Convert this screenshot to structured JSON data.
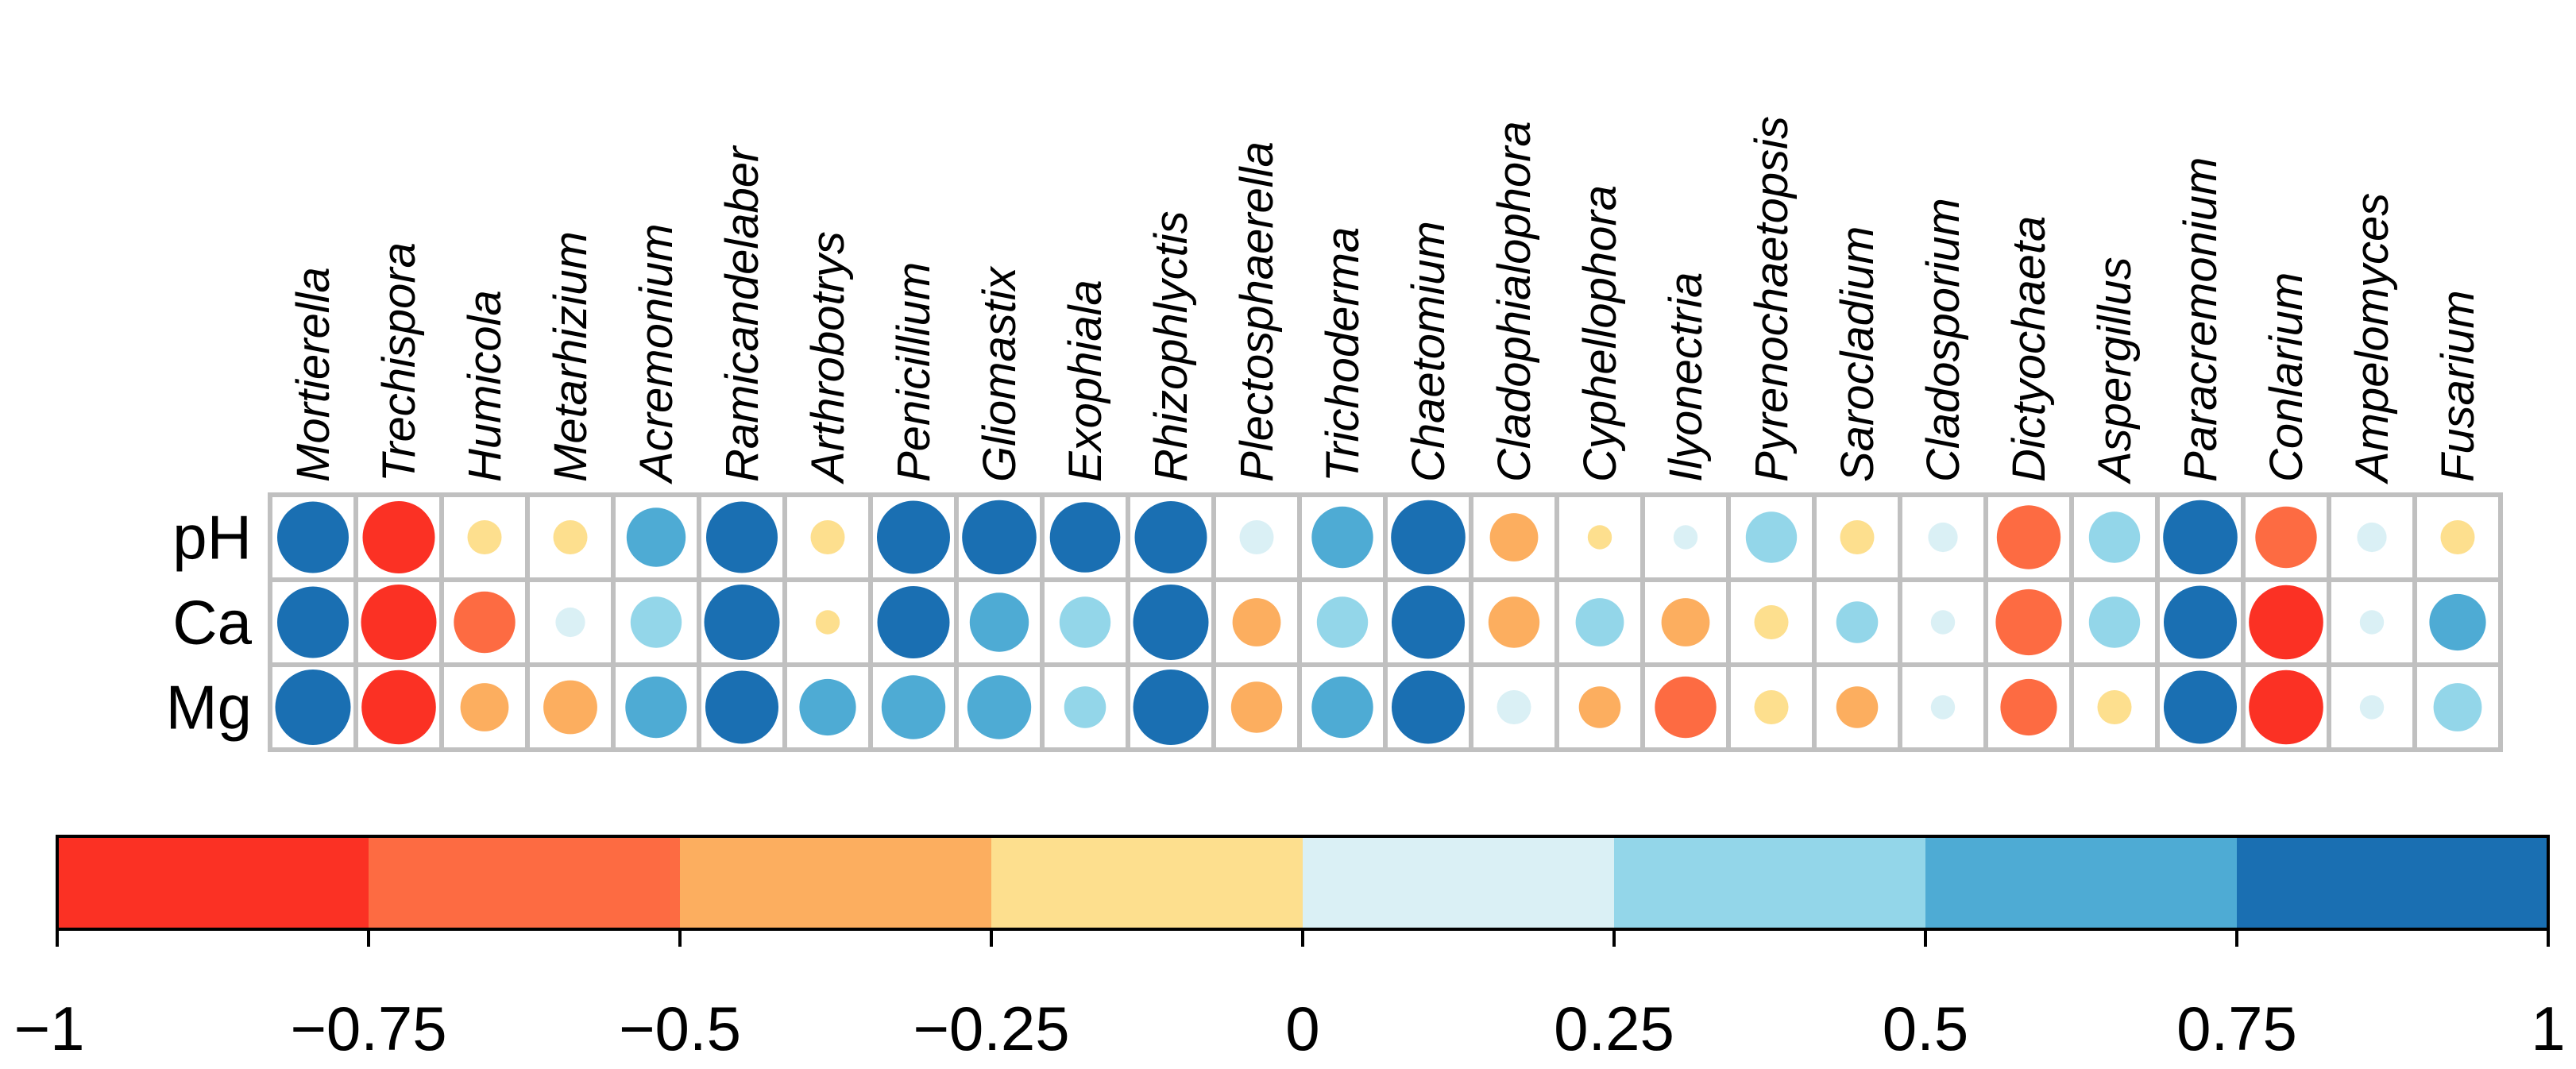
{
  "chart_data": {
    "type": "correlation-dotplot",
    "columns": [
      "Mortierella",
      "Trechispora",
      "Humicola",
      "Metarhizium",
      "Acremonium",
      "Ramicandelaber",
      "Arthrobotrys",
      "Penicillium",
      "Gliomastix",
      "Exophiala",
      "Rhizophlyctis",
      "Plectosphaerella",
      "Trichoderma",
      "Chaetomium",
      "Cladophialophora",
      "Cyphellophora",
      "Ilyonectria",
      "Pyrenochaetopsis",
      "Sarocladium",
      "Cladosporium",
      "Dictyochaeta",
      "Aspergillus",
      "Paracremonium",
      "Conlarium",
      "Ampelomyces",
      "Fusarium"
    ],
    "rows": [
      "pH",
      "Ca",
      "Mg"
    ],
    "values": [
      [
        0.88,
        -0.9,
        -0.2,
        -0.2,
        0.6,
        0.88,
        -0.2,
        0.92,
        0.95,
        0.85,
        0.9,
        0.2,
        0.65,
        0.95,
        -0.4,
        -0.1,
        0.1,
        0.45,
        -0.2,
        0.15,
        -0.7,
        0.45,
        0.95,
        -0.65,
        0.15,
        -0.2
      ],
      [
        0.88,
        -0.98,
        -0.65,
        0.15,
        0.45,
        0.98,
        -0.1,
        0.9,
        0.6,
        0.45,
        0.98,
        -0.4,
        0.45,
        0.92,
        -0.45,
        0.4,
        -0.4,
        -0.2,
        0.3,
        0.1,
        -0.75,
        0.45,
        0.92,
        -0.95,
        0.1,
        0.55
      ],
      [
        0.98,
        -0.95,
        -0.4,
        -0.5,
        0.65,
        0.92,
        0.55,
        0.7,
        0.7,
        0.3,
        0.98,
        -0.45,
        0.65,
        0.92,
        0.2,
        -0.3,
        -0.65,
        -0.2,
        -0.3,
        0.1,
        -0.55,
        -0.2,
        0.92,
        -0.95,
        0.1,
        0.4
      ]
    ],
    "colorbar": {
      "ticks": [
        "−1",
        "−0.75",
        "−0.5",
        "−0.25",
        "0",
        "0.25",
        "0.5",
        "0.75",
        "1"
      ],
      "range": [
        -1,
        1
      ],
      "bins": [
        {
          "from": -1,
          "to": -0.75,
          "color": "#fb3124"
        },
        {
          "from": -0.75,
          "to": -0.5,
          "color": "#fd6b42"
        },
        {
          "from": -0.5,
          "to": -0.25,
          "color": "#fcae5f"
        },
        {
          "from": -0.25,
          "to": 0,
          "color": "#fddf8e"
        },
        {
          "from": 0,
          "to": 0.25,
          "color": "#daf0f5"
        },
        {
          "from": 0.25,
          "to": 0.5,
          "color": "#93d6e9"
        },
        {
          "from": 0.5,
          "to": 0.75,
          "color": "#4eabd4"
        },
        {
          "from": 0.75,
          "to": 1,
          "color": "#1a6fb2"
        }
      ]
    },
    "grid_color": "#c0c0c0"
  }
}
